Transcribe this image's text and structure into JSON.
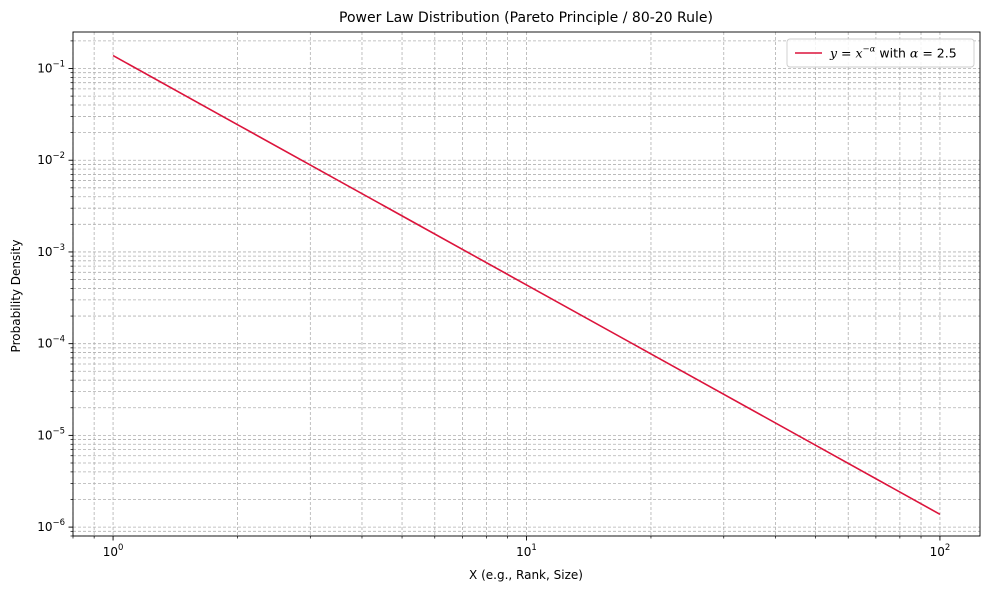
{
  "chart_data": {
    "type": "line",
    "title": "Power Law Distribution (Pareto Principle / 80-20 Rule)",
    "xlabel": "X (e.g., Rank, Size)",
    "ylabel": "Probability Density",
    "xscale": "log",
    "yscale": "log",
    "xlim": [
      0.8,
      125
    ],
    "ylim": [
      8e-07,
      0.25
    ],
    "x_ticks": [
      1,
      10,
      100
    ],
    "x_tick_labels": [
      {
        "base": "10",
        "exp": "0"
      },
      {
        "base": "10",
        "exp": "1"
      },
      {
        "base": "10",
        "exp": "2"
      }
    ],
    "y_ticks": [
      1e-06,
      1e-05,
      0.0001,
      0.001,
      0.01,
      0.1
    ],
    "y_tick_labels": [
      {
        "base": "10",
        "exp": "−6"
      },
      {
        "base": "10",
        "exp": "−5"
      },
      {
        "base": "10",
        "exp": "−4"
      },
      {
        "base": "10",
        "exp": "−3"
      },
      {
        "base": "10",
        "exp": "−2"
      },
      {
        "base": "10",
        "exp": "−1"
      }
    ],
    "grid": true,
    "grid_which": "both",
    "legend_position": "top-right",
    "series": [
      {
        "label_parts": {
          "y": "y",
          "eq": " = ",
          "x": "x",
          "exp": "−α",
          "with": " with ",
          "alpha": "α",
          "val": " = 2.5"
        },
        "color": "#dc143c",
        "x": [
          1,
          2,
          5,
          10,
          20,
          50,
          100
        ],
        "y": [
          0.1382,
          0.02443,
          0.002473,
          0.000437,
          7.73e-05,
          7.82e-06,
          1.38e-06
        ]
      }
    ]
  }
}
